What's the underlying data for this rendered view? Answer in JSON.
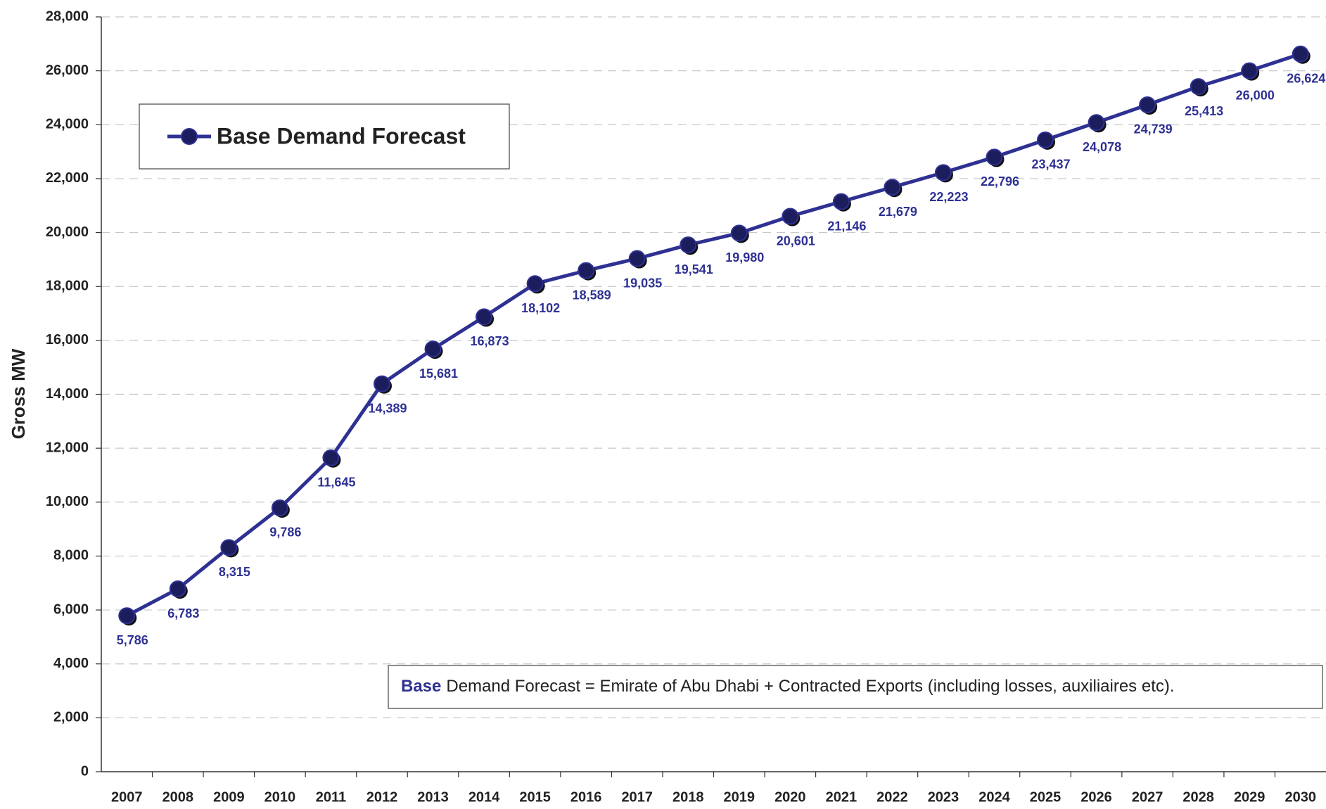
{
  "chart_data": {
    "type": "line",
    "y_label": "Gross MW",
    "annotation_bold": "Base",
    "annotation_text": "Demand Forecast = Emirate of Abu Dhabi + Contracted Exports (including losses, auxiliaires etc).",
    "categories": [
      "2007",
      "2008",
      "2009",
      "2010",
      "2011",
      "2012",
      "2013",
      "2014",
      "2015",
      "2016",
      "2017",
      "2018",
      "2019",
      "2020",
      "2021",
      "2022",
      "2023",
      "2024",
      "2025",
      "2026",
      "2027",
      "2028",
      "2029",
      "2030"
    ],
    "series": [
      {
        "name": "Base Demand Forecast",
        "color": "#2e3192",
        "values": [
          5786,
          6783,
          8315,
          9786,
          11645,
          14389,
          15681,
          16873,
          18102,
          18589,
          19035,
          19541,
          19980,
          20601,
          21146,
          21679,
          22223,
          22796,
          23437,
          24078,
          24739,
          25413,
          26000,
          26624
        ],
        "value_labels": [
          "5,786",
          "6,783",
          "8,315",
          "9,786",
          "11,645",
          "14,389",
          "15,681",
          "16,873",
          "18,102",
          "18,589",
          "19,035",
          "19,541",
          "19,980",
          "20,601",
          "21,146",
          "21,679",
          "22,223",
          "22,796",
          "23,437",
          "24,078",
          "24,739",
          "25,413",
          "26,000",
          "26,624"
        ]
      }
    ],
    "ylim": [
      0,
      28000
    ],
    "yticks": [
      0,
      {
        "value": 2000,
        "label": "2,000"
      },
      {
        "value": 4000,
        "label": "4,000"
      },
      {
        "value": 6000,
        "label": "6,000"
      },
      {
        "value": 8000,
        "label": "8,000"
      },
      {
        "value": 10000,
        "label": "10,000"
      },
      {
        "value": 12000,
        "label": "12,000"
      },
      {
        "value": 14000,
        "label": "14,000"
      },
      {
        "value": 16000,
        "label": "16,000"
      },
      {
        "value": 18000,
        "label": "18,000"
      },
      {
        "value": 20000,
        "label": "20,000"
      },
      {
        "value": 22000,
        "label": "22,000"
      },
      {
        "value": 24000,
        "label": "24,000"
      },
      {
        "value": 26000,
        "label": "26,000"
      },
      {
        "value": 28000,
        "label": "28,000"
      }
    ],
    "grid": true
  }
}
